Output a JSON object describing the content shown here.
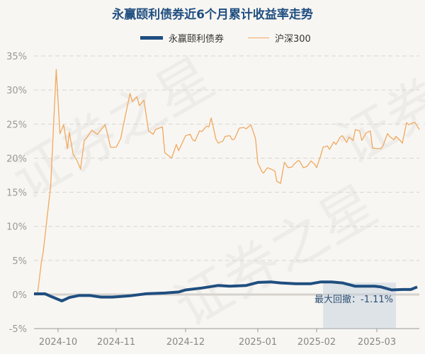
{
  "chart_data": {
    "type": "line",
    "title": "永赢颐利债券近6个月累计收益率走势",
    "xlabel": "",
    "ylabel": "",
    "ylim": [
      -5,
      35
    ],
    "xlim": [
      "2024-09-18",
      "2025-03-21"
    ],
    "y_ticks": [
      -5,
      0,
      5,
      10,
      15,
      20,
      25,
      30,
      35
    ],
    "y_tick_labels": [
      "-5%",
      "0%",
      "5%",
      "10%",
      "15%",
      "20%",
      "25%",
      "30%",
      "35%"
    ],
    "x_ticks": [
      "2024-10-01",
      "2024-11-01",
      "2024-12-01",
      "2025-01-01",
      "2025-02-01",
      "2025-03-01"
    ],
    "x_tick_labels": [
      "2024-10",
      "2024-11",
      "2024-12",
      "2025-01",
      "2025-02",
      "2025-03"
    ],
    "grid": true,
    "legend_position": "top-center",
    "series": [
      {
        "name": "永赢颐利债券",
        "color": "#1f4e80",
        "points": [
          [
            "2024-09-18",
            0.1
          ],
          [
            "2024-09-24",
            0.1
          ],
          [
            "2024-09-27",
            -0.26
          ],
          [
            "2024-10-03",
            -0.93
          ],
          [
            "2024-10-07",
            -0.44
          ],
          [
            "2024-10-12",
            -0.15
          ],
          [
            "2024-10-18",
            -0.15
          ],
          [
            "2024-10-24",
            -0.37
          ],
          [
            "2024-10-30",
            -0.37
          ],
          [
            "2024-11-07",
            -0.19
          ],
          [
            "2024-11-14",
            0.11
          ],
          [
            "2024-11-22",
            0.22
          ],
          [
            "2024-11-28",
            0.37
          ],
          [
            "2024-12-01",
            0.67
          ],
          [
            "2024-12-08",
            0.96
          ],
          [
            "2024-12-15",
            1.33
          ],
          [
            "2024-12-20",
            1.22
          ],
          [
            "2024-12-27",
            1.33
          ],
          [
            "2025-01-01",
            1.78
          ],
          [
            "2025-01-08",
            1.85
          ],
          [
            "2025-01-13",
            1.7
          ],
          [
            "2025-01-21",
            1.59
          ],
          [
            "2025-01-29",
            1.59
          ],
          [
            "2025-02-03",
            1.85
          ],
          [
            "2025-02-08",
            1.85
          ],
          [
            "2025-02-13",
            1.7
          ],
          [
            "2025-02-19",
            1.22
          ],
          [
            "2025-02-28",
            1.22
          ],
          [
            "2025-03-03",
            1.11
          ],
          [
            "2025-03-08",
            0.67
          ],
          [
            "2025-03-13",
            0.74
          ],
          [
            "2025-03-17",
            0.74
          ],
          [
            "2025-03-20",
            1.11
          ]
        ]
      },
      {
        "name": "沪深300",
        "color": "#f0a860",
        "points": [
          [
            "2024-09-18",
            0
          ],
          [
            "2024-09-20",
            0.3
          ],
          [
            "2024-09-22",
            4.8
          ],
          [
            "2024-09-23",
            6.3
          ],
          [
            "2024-09-27",
            15.9
          ],
          [
            "2024-09-30",
            33.0
          ],
          [
            "2024-10-02",
            23.6
          ],
          [
            "2024-10-04",
            24.9
          ],
          [
            "2024-10-06",
            21.4
          ],
          [
            "2024-10-07",
            23.8
          ],
          [
            "2024-10-09",
            20.6
          ],
          [
            "2024-10-11",
            19.7
          ],
          [
            "2024-10-13",
            18.4
          ],
          [
            "2024-10-15",
            22.6
          ],
          [
            "2024-10-16",
            22.9
          ],
          [
            "2024-10-19",
            24.1
          ],
          [
            "2024-10-22",
            23.5
          ],
          [
            "2024-10-24",
            24.2
          ],
          [
            "2024-10-26",
            24.9
          ],
          [
            "2024-10-27",
            24.0
          ],
          [
            "2024-10-29",
            21.6
          ],
          [
            "2024-11-01",
            21.6
          ],
          [
            "2024-11-03",
            22.9
          ],
          [
            "2024-11-04",
            24.7
          ],
          [
            "2024-11-05",
            26.3
          ],
          [
            "2024-11-07",
            29.5
          ],
          [
            "2024-11-08",
            28.3
          ],
          [
            "2024-11-10",
            29.0
          ],
          [
            "2024-11-11",
            27.7
          ],
          [
            "2024-11-13",
            28.5
          ],
          [
            "2024-11-15",
            24.0
          ],
          [
            "2024-11-17",
            23.5
          ],
          [
            "2024-11-18",
            24.2
          ],
          [
            "2024-11-21",
            24.6
          ],
          [
            "2024-11-22",
            20.8
          ],
          [
            "2024-11-25",
            20.0
          ],
          [
            "2024-11-27",
            22.0
          ],
          [
            "2024-11-28",
            21.1
          ],
          [
            "2024-12-01",
            23.3
          ],
          [
            "2024-12-03",
            23.5
          ],
          [
            "2024-12-04",
            22.7
          ],
          [
            "2024-12-05",
            22.5
          ],
          [
            "2024-12-07",
            24.0
          ],
          [
            "2024-12-08",
            23.9
          ],
          [
            "2024-12-10",
            24.7
          ],
          [
            "2024-12-11",
            24.6
          ],
          [
            "2024-12-12",
            25.9
          ],
          [
            "2024-12-14",
            22.8
          ],
          [
            "2024-12-15",
            22.2
          ],
          [
            "2024-12-17",
            22.5
          ],
          [
            "2024-12-18",
            23.2
          ],
          [
            "2024-12-20",
            23.3
          ],
          [
            "2024-12-21",
            22.7
          ],
          [
            "2024-12-22",
            22.8
          ],
          [
            "2024-12-24",
            24.4
          ],
          [
            "2024-12-26",
            24.5
          ],
          [
            "2024-12-27",
            24.3
          ],
          [
            "2024-12-29",
            24.9
          ],
          [
            "2024-12-31",
            22.9
          ],
          [
            "2025-01-01",
            19.3
          ],
          [
            "2025-01-03",
            18.1
          ],
          [
            "2025-01-04",
            17.8
          ],
          [
            "2025-01-06",
            18.6
          ],
          [
            "2025-01-08",
            18.4
          ],
          [
            "2025-01-10",
            18.1
          ],
          [
            "2025-01-11",
            16.6
          ],
          [
            "2025-01-13",
            16.3
          ],
          [
            "2025-01-15",
            19.4
          ],
          [
            "2025-01-17",
            18.6
          ],
          [
            "2025-01-19",
            18.7
          ],
          [
            "2025-01-20",
            19.1
          ],
          [
            "2025-01-22",
            19.6
          ],
          [
            "2025-01-23",
            19.6
          ],
          [
            "2025-01-25",
            18.6
          ],
          [
            "2025-01-27",
            18.8
          ],
          [
            "2025-01-29",
            19.6
          ],
          [
            "2025-01-31",
            19.1
          ],
          [
            "2025-02-01",
            18.6
          ],
          [
            "2025-02-03",
            20.5
          ],
          [
            "2025-02-04",
            21.6
          ],
          [
            "2025-02-06",
            21.8
          ],
          [
            "2025-02-07",
            21.3
          ],
          [
            "2025-02-09",
            22.4
          ],
          [
            "2025-02-10",
            22.0
          ],
          [
            "2025-02-12",
            23.1
          ],
          [
            "2025-02-13",
            23.3
          ],
          [
            "2025-02-15",
            22.3
          ],
          [
            "2025-02-16",
            23.1
          ],
          [
            "2025-02-18",
            22.6
          ],
          [
            "2025-02-19",
            24.2
          ],
          [
            "2025-02-21",
            24.0
          ],
          [
            "2025-02-22",
            22.6
          ],
          [
            "2025-02-24",
            23.7
          ],
          [
            "2025-02-26",
            24.0
          ],
          [
            "2025-02-27",
            21.5
          ],
          [
            "2025-03-01",
            21.4
          ],
          [
            "2025-03-03",
            21.4
          ],
          [
            "2025-03-04",
            21.9
          ],
          [
            "2025-03-06",
            23.6
          ],
          [
            "2025-03-07",
            23.2
          ],
          [
            "2025-03-09",
            22.7
          ],
          [
            "2025-03-10",
            23.2
          ],
          [
            "2025-03-12",
            22.6
          ],
          [
            "2025-03-13",
            22.2
          ],
          [
            "2025-03-15",
            25.2
          ],
          [
            "2025-03-16",
            24.9
          ],
          [
            "2025-03-18",
            25.2
          ],
          [
            "2025-03-19",
            25.2
          ],
          [
            "2025-03-21",
            24.2
          ]
        ]
      }
    ],
    "annotations": [
      {
        "type": "max-drawdown",
        "label": "最大回撤：-1.11%",
        "value": -1.11,
        "start": "2025-02-04",
        "end": "2025-03-10"
      }
    ]
  },
  "watermark": "证券之星"
}
